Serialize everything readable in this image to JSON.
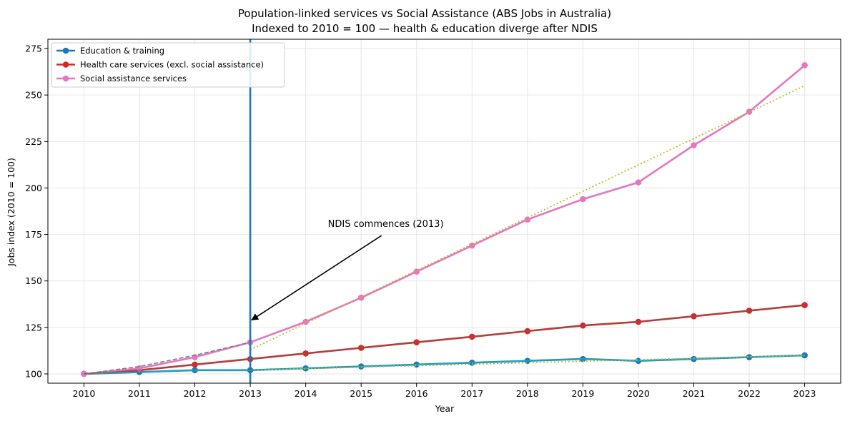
{
  "chart_data": {
    "type": "line",
    "title": "Population-linked services vs Social Assistance (ABS Jobs in Australia)",
    "subtitle": "Indexed to 2010 = 100 — health & education diverge after NDIS",
    "xlabel": "Year",
    "ylabel": "Jobs index (2010 = 100)",
    "x": [
      2010,
      2011,
      2012,
      2013,
      2014,
      2015,
      2016,
      2017,
      2018,
      2019,
      2020,
      2021,
      2022,
      2023
    ],
    "xlim": [
      2009.35,
      2023.65
    ],
    "ylim": [
      95,
      280
    ],
    "yticks": [
      100,
      125,
      150,
      175,
      200,
      225,
      250,
      275
    ],
    "grid": true,
    "legend_position": "top-left",
    "series": [
      {
        "name": "Education & training",
        "color": "#1f77b4",
        "values": [
          100,
          101,
          102,
          102,
          103,
          104,
          105,
          106,
          107,
          108,
          107,
          108,
          109,
          110
        ]
      },
      {
        "name": "Health care services (excl. social assistance)",
        "color": "#d62728",
        "values": [
          100,
          102,
          105,
          108,
          111,
          114,
          117,
          120,
          123,
          126,
          128,
          131,
          134,
          137
        ]
      },
      {
        "name": "Social assistance services",
        "color": "#e377c2",
        "values": [
          100,
          103,
          109,
          117,
          128,
          141,
          155,
          169,
          183,
          194,
          203,
          223,
          241,
          266
        ]
      }
    ],
    "reference_lines": [
      {
        "color": "#7f7f7f",
        "style": "dashed",
        "x": [
          2010,
          2011,
          2012,
          2013
        ],
        "values": [
          100,
          104,
          110,
          117
        ]
      },
      {
        "color": "#bcbd22",
        "style": "dotted",
        "x": [
          2013,
          2023
        ],
        "values": [
          113,
          255
        ]
      },
      {
        "color": "#17becf",
        "style": "solid",
        "x": [
          2010,
          2011,
          2012,
          2013,
          2014,
          2015,
          2016,
          2017,
          2018,
          2019,
          2020,
          2021,
          2022,
          2023
        ],
        "values": [
          100,
          101,
          102,
          102,
          103,
          104,
          105,
          106,
          107,
          108,
          107,
          108,
          109,
          110
        ]
      },
      {
        "color": "#8c564b",
        "style": "solid",
        "x": [
          2010,
          2011,
          2012,
          2013,
          2014,
          2015,
          2016,
          2017,
          2018,
          2019,
          2020,
          2021,
          2022,
          2023
        ],
        "values": [
          100,
          102,
          105,
          108,
          111,
          114,
          117,
          120,
          123,
          126,
          128,
          131,
          134,
          137
        ]
      },
      {
        "color": "#bcbd22",
        "style": "dotted",
        "x": [
          2013,
          2018,
          2023
        ],
        "values": [
          102,
          106,
          110
        ]
      }
    ],
    "vline": {
      "x": 2013,
      "color": "#1f77b4"
    },
    "annotation": {
      "text": "NDIS commences (2013)",
      "arrow_to": {
        "x": 2013,
        "y": 129
      },
      "text_at": {
        "x": 2014.4,
        "y": 179
      }
    }
  }
}
